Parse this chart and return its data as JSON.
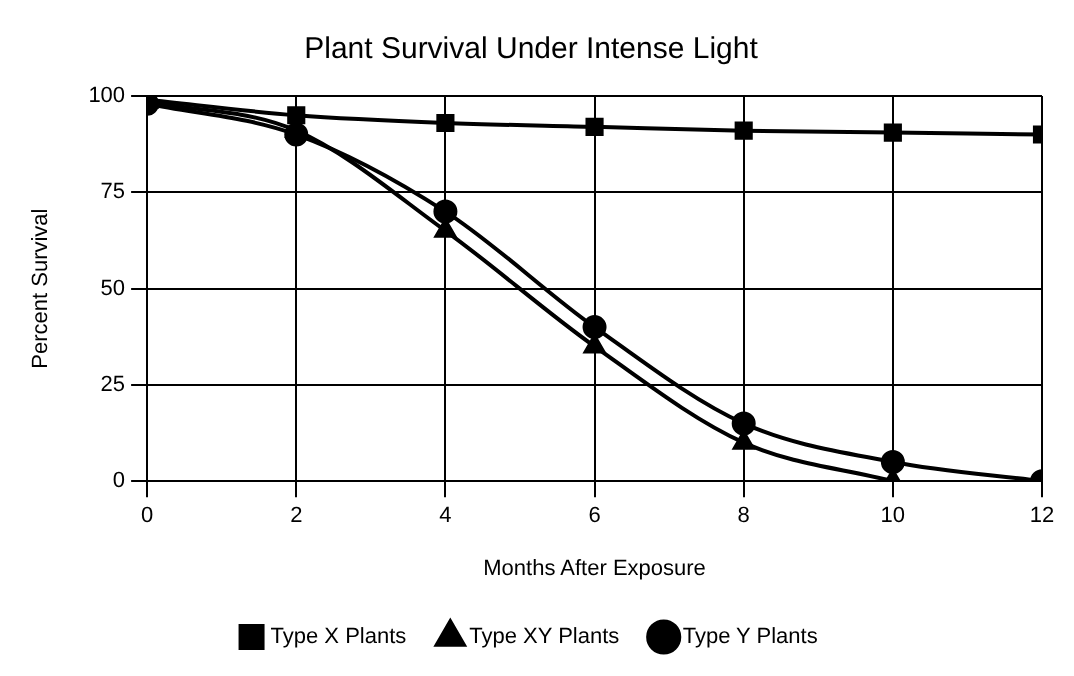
{
  "chart_data": {
    "type": "line",
    "title": "Plant Survival Under Intense Light",
    "xlabel": "Months After Exposure",
    "ylabel": "Percent Survival",
    "x": [
      0,
      2,
      4,
      6,
      8,
      10,
      12
    ],
    "xlim": [
      0,
      12
    ],
    "xticks": [
      0,
      2,
      4,
      6,
      8,
      10,
      12
    ],
    "ylim": [
      0,
      100
    ],
    "yticks": [
      0,
      25,
      50,
      75,
      100
    ],
    "grid": true,
    "legend": "bottom",
    "series": [
      {
        "name": "Type X Plants",
        "color": "#000000",
        "marker": "square",
        "values": [
          99,
          95,
          93,
          92,
          91,
          90.5,
          90
        ]
      },
      {
        "name": "Type XY Plants",
        "color": "#000000",
        "marker": "triangle",
        "values": [
          98.5,
          91,
          65,
          35,
          10,
          0,
          null
        ]
      },
      {
        "name": "Type Y Plants",
        "color": "#000000",
        "marker": "circle",
        "values": [
          98,
          90,
          70,
          40,
          15,
          5,
          0
        ]
      }
    ]
  }
}
